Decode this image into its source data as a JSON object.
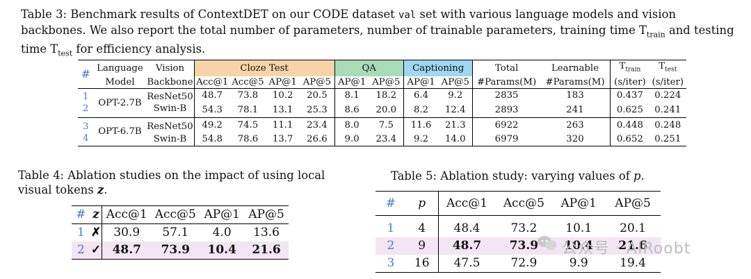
{
  "table3": {
    "label": "Table 3:",
    "caption_parts": [
      "Benchmark results of ContextDET on our CODE dataset ",
      "val",
      " set with various language models and vision backbones. We also report the total number of parameters, number of trainable parameters, training time T",
      "train",
      " and testing time T",
      "test",
      " for efficiency analysis."
    ],
    "headers": {
      "hash": "#",
      "language_model": [
        "Language",
        "Model"
      ],
      "vision_backbone": [
        "Vision",
        "Backbone"
      ],
      "group_cloze": "Cloze Test",
      "group_qa": "QA",
      "group_captioning": "Captioning",
      "total_params": [
        "Total",
        "#Params(M)"
      ],
      "learnable_params": [
        "Learnable",
        "#Params(M)"
      ],
      "t_train": "T",
      "t_train_sub": "train",
      "t_test": "T",
      "t_test_sub": "test",
      "unit": "(s/iter)",
      "metrics": [
        "Acc@1",
        "Acc@5",
        "AP@1",
        "AP@5",
        "AP@1",
        "AP@5",
        "AP@1",
        "AP@5"
      ]
    },
    "rows": [
      {
        "idx": "1",
        "model": "OPT-2.7B",
        "backbone": "ResNet50",
        "vals": [
          "48.7",
          "73.8",
          "10.2",
          "20.5",
          "8.1",
          "18.2",
          "6.4",
          "9.2"
        ],
        "total": "2835",
        "learnable": "183",
        "ttrain": "0.437",
        "ttest": "0.224"
      },
      {
        "idx": "2",
        "model": "",
        "backbone": "Swin-B",
        "vals": [
          "54.3",
          "78.1",
          "13.1",
          "25.3",
          "8.6",
          "20.0",
          "8.2",
          "12.4"
        ],
        "total": "2893",
        "learnable": "241",
        "ttrain": "0.625",
        "ttest": "0.241"
      },
      {
        "idx": "3",
        "model": "OPT-6.7B",
        "backbone": "ResNet50",
        "vals": [
          "49.2",
          "74.5",
          "11.1",
          "23.4",
          "8.0",
          "7.5",
          "11.6",
          "21.3"
        ],
        "total": "6922",
        "learnable": "263",
        "ttrain": "0.448",
        "ttest": "0.248"
      },
      {
        "idx": "4",
        "model": "",
        "backbone": "Swin-B",
        "vals": [
          "54.8",
          "78.6",
          "13.7",
          "26.6",
          "9.0",
          "23.4",
          "9.2",
          "14.0"
        ],
        "total": "6979",
        "learnable": "320",
        "ttrain": "0.652",
        "ttest": "0.251"
      }
    ]
  },
  "table4": {
    "label": "Table 4:",
    "caption": "Ablation studies on the impact of using local visual tokens",
    "caption_var": "z",
    "caption_end": ".",
    "headers": [
      "#",
      "z",
      "Acc@1",
      "Acc@5",
      "AP@1",
      "AP@5"
    ],
    "rows": [
      {
        "idx": "1",
        "z": "✗",
        "vals": [
          "30.9",
          "57.1",
          "4.0",
          "13.6"
        ]
      },
      {
        "idx": "2",
        "z": "✓",
        "vals": [
          "48.7",
          "73.9",
          "10.4",
          "21.6"
        ]
      }
    ]
  },
  "table5": {
    "label": "Table 5:",
    "caption": "Ablation study: varying values of",
    "caption_var": "p",
    "caption_end": ".",
    "headers": [
      "#",
      "p",
      "Acc@1",
      "Acc@5",
      "AP@1",
      "AP@5"
    ],
    "rows": [
      {
        "idx": "1",
        "p": "4",
        "vals": [
          "48.4",
          "73.2",
          "10.1",
          "20.1"
        ]
      },
      {
        "idx": "2",
        "p": "9",
        "vals": [
          "48.7",
          "73.9",
          "10.4",
          "21.6"
        ]
      },
      {
        "idx": "3",
        "p": "16",
        "vals": [
          "47.5",
          "72.9",
          "9.9",
          "19.4"
        ]
      }
    ]
  },
  "watermark": "公众号 · AIRoobt"
}
